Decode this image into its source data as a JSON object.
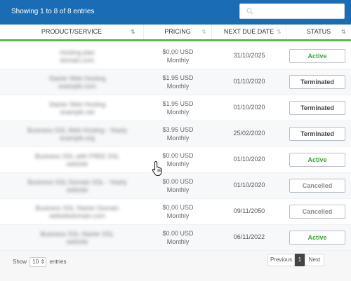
{
  "header": {
    "info": "Showing 1 to 8 of 8 entries",
    "search_placeholder": ""
  },
  "columns": [
    "PRODUCT/SERVICE",
    "PRICING",
    "NEXT DUE DATE",
    "STATUS"
  ],
  "rows": [
    {
      "product_line1": "Hosting plan",
      "product_line2": "domain.com",
      "price": "$0,00 USD",
      "cycle": "Monthly",
      "due": "31/10/2025",
      "status": "Active"
    },
    {
      "product_line1": "Starter Web Hosting",
      "product_line2": "example.com",
      "price": "$1.95 USD",
      "cycle": "Monthly",
      "due": "01/10/2020",
      "status": "Terminated"
    },
    {
      "product_line1": "Starter Web Hosting",
      "product_line2": "example.net",
      "price": "$1.95 USD",
      "cycle": "Monthly",
      "due": "01/10/2020",
      "status": "Terminated"
    },
    {
      "product_line1": "Business SSL Web Hosting - Yearly",
      "product_line2": "example.org",
      "price": "$3.95 USD",
      "cycle": "Monthly",
      "due": "25/02/2020",
      "status": "Terminated"
    },
    {
      "product_line1": "Business SSL with FREE SSL",
      "product_line2": "website",
      "price": "$0.00 USD",
      "cycle": "Monthly",
      "due": "01/10/2020",
      "status": "Active"
    },
    {
      "product_line1": "Business SSL Domain SSL - Yearly",
      "product_line2": "website",
      "price": "$0.00 USD",
      "cycle": "Monthly",
      "due": "01/10/2020",
      "status": "Cancelled"
    },
    {
      "product_line1": "Business SSL Starter Domain",
      "product_line2": "websitedomain.com",
      "price": "$0,00 USD",
      "cycle": "Monthly",
      "due": "09/11/2050",
      "status": "Cancelled"
    },
    {
      "product_line1": "Business SSL Starter SSL",
      "product_line2": "website",
      "price": "$0.00 USD",
      "cycle": "Monthly",
      "due": "06/11/2022",
      "status": "Active"
    }
  ],
  "footer": {
    "show_label": "Show",
    "entries_label": "entries",
    "page_size": "10",
    "prev_label": "Previous",
    "page_number": "1",
    "next_label": "Next"
  },
  "colors": {
    "header_bg": "#1a6db5",
    "active": "#3aa535",
    "terminated": "#444444",
    "cancelled": "#8a8a8a",
    "accent_line": "#5ab84a"
  },
  "icons": {
    "search": "search-icon",
    "cursor": "hand-pointer-icon"
  }
}
